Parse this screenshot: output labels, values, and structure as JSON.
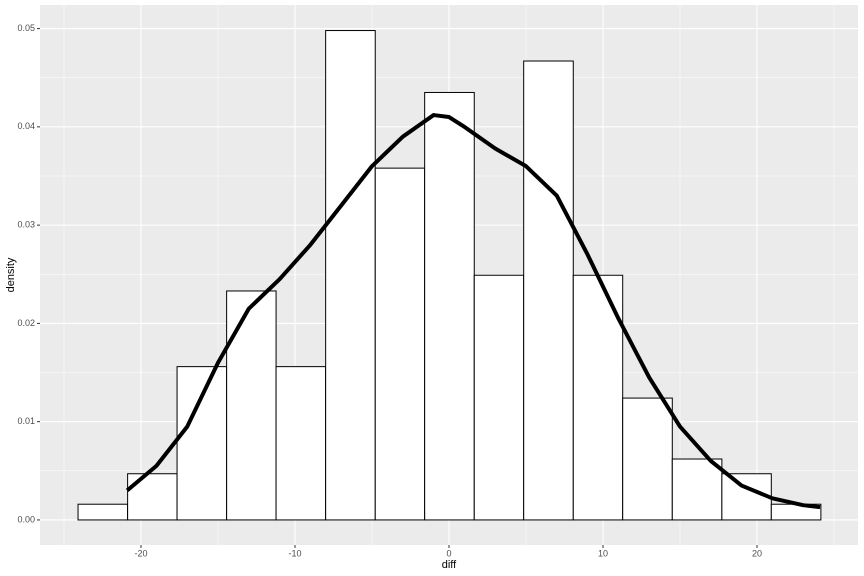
{
  "chart_data": {
    "type": "histogram",
    "xlabel": "diff",
    "ylabel": "density",
    "bins": [
      -24.09,
      -20.87,
      -17.66,
      -14.44,
      -11.23,
      -8.01,
      -4.79,
      -1.58,
      1.64,
      4.85,
      8.07,
      11.28,
      14.5,
      17.72,
      20.93,
      24.15
    ],
    "values": [
      0.0016,
      0.0047,
      0.0156,
      0.0233,
      0.0156,
      0.0498,
      0.0358,
      0.0435,
      0.0249,
      0.0467,
      0.0249,
      0.0124,
      0.0062,
      0.0047,
      0.0016
    ],
    "fill": "#ffffff",
    "edge_color": "#000000",
    "density": {
      "x": [
        -20.9,
        -19,
        -17,
        -15,
        -13,
        -11,
        -9,
        -7,
        -5,
        -3,
        -1,
        0,
        1,
        3,
        5,
        7,
        9,
        11,
        13,
        15,
        17,
        19,
        21,
        23,
        24.1
      ],
      "values": [
        0.003,
        0.0055,
        0.0095,
        0.016,
        0.0215,
        0.0245,
        0.028,
        0.032,
        0.036,
        0.039,
        0.0412,
        0.041,
        0.04,
        0.0378,
        0.036,
        0.033,
        0.027,
        0.0205,
        0.0145,
        0.0095,
        0.006,
        0.0035,
        0.0022,
        0.0015,
        0.0013
      ],
      "color": "#000000"
    },
    "xlim": [
      -26.56,
      26.56
    ],
    "ylim": [
      -0.00255,
      0.0524
    ],
    "xticks": [
      -20,
      -10,
      0,
      10,
      20
    ],
    "yticks": [
      {
        "value": 0,
        "label": "0.00"
      },
      0.01,
      0.02,
      0.03,
      0.04,
      0.05
    ],
    "grid": true,
    "panel_color": "#ebebeb",
    "grid_color": "#ffffff"
  }
}
